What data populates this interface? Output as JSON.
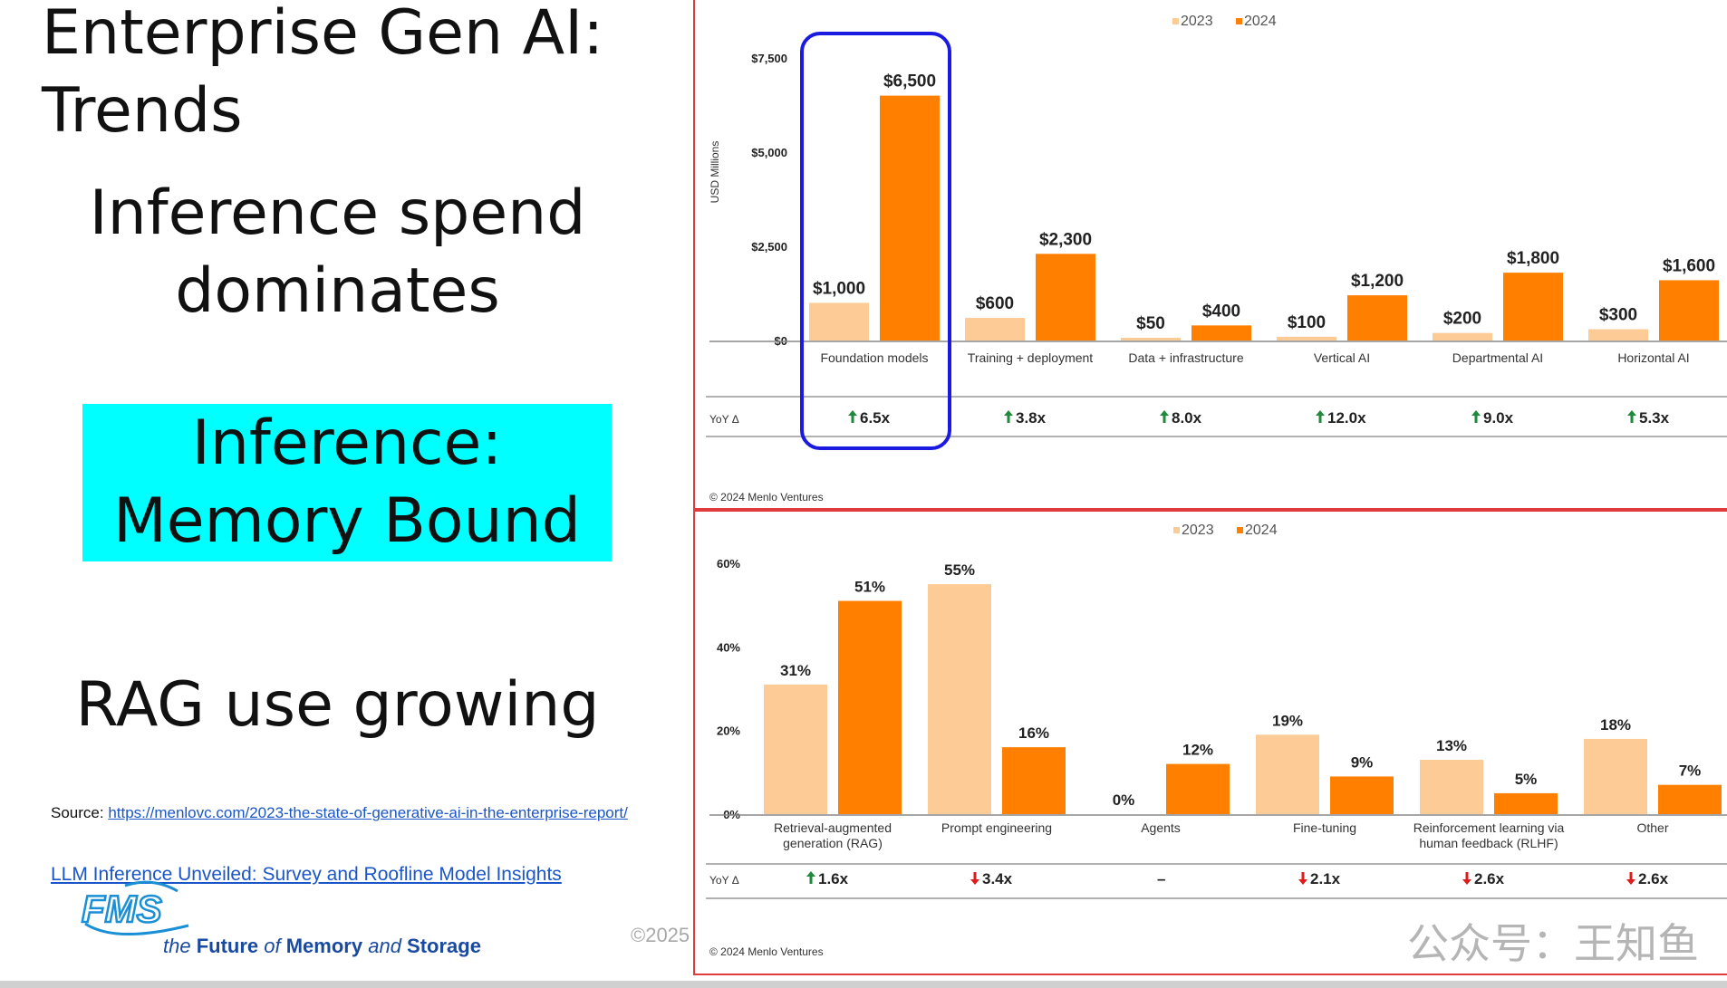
{
  "slide": {
    "title": "Enterprise Gen AI: Trends",
    "headline_1": "Inference spend dominates",
    "highlight_box": "Inference: Memory Bound",
    "headline_2": "RAG use growing",
    "source_label": "Source: ",
    "source_url": "https://menlovc.com/2023-the-state-of-generative-ai-in-the-enterprise-report/",
    "paper_link": "LLM Inference Unveiled: Survey and Roofline Model Insights",
    "logo_text": "FMS",
    "tagline": {
      "the": "the ",
      "future": "Future ",
      "of": "of ",
      "memory": "Memory ",
      "and": "and ",
      "storage": "Storage"
    },
    "copyright": "©2025",
    "watermark": "公众号：王知鱼"
  },
  "colors": {
    "series_2023": "#fccb96",
    "series_2024": "#ff7f00",
    "highlight_fill": "#00ffff",
    "panel_border": "#e03c3c",
    "callout": "#1a1ae0",
    "arrow_up": "#1e8a3a",
    "arrow_down": "#e01b1b"
  },
  "chart_data": [
    {
      "type": "bar",
      "ylabel": "USD Millions",
      "yticks": [
        "$0",
        "$2,500",
        "$5,000",
        "$7,500"
      ],
      "ylim": [
        0,
        7500
      ],
      "legend_position": "top-center",
      "categories": [
        "Foundation models",
        "Training + deployment",
        "Data + infrastructure",
        "Vertical AI",
        "Departmental AI",
        "Horizontal AI"
      ],
      "series": [
        {
          "name": "2023",
          "values": [
            1000,
            600,
            50,
            100,
            200,
            300
          ],
          "labels": [
            "$1,000",
            "$600",
            "$50",
            "$100",
            "$200",
            "$300"
          ]
        },
        {
          "name": "2024",
          "values": [
            6500,
            2300,
            400,
            1200,
            1800,
            1600
          ],
          "labels": [
            "$6,500",
            "$2,300",
            "$400",
            "$1,200",
            "$1,800",
            "$1,600"
          ]
        }
      ],
      "yoy_label": "YoY Δ",
      "yoy": [
        {
          "dir": "up",
          "text": "6.5x"
        },
        {
          "dir": "up",
          "text": "3.8x"
        },
        {
          "dir": "up",
          "text": "8.0x"
        },
        {
          "dir": "up",
          "text": "12.0x"
        },
        {
          "dir": "up",
          "text": "9.0x"
        },
        {
          "dir": "up",
          "text": "5.3x"
        }
      ],
      "credit": "© 2024 Menlo Ventures",
      "highlighted_category": "Foundation models"
    },
    {
      "type": "bar",
      "yticks": [
        "0%",
        "20%",
        "40%",
        "60%"
      ],
      "ylim": [
        0,
        60
      ],
      "legend_position": "top-center",
      "categories": [
        [
          "Retrieval-augmented",
          "generation (RAG)"
        ],
        [
          "Prompt engineering"
        ],
        [
          "Agents"
        ],
        [
          "Fine-tuning"
        ],
        [
          "Reinforcement learning via",
          "human feedback (RLHF)"
        ],
        [
          "Other"
        ]
      ],
      "series": [
        {
          "name": "2023",
          "values": [
            31,
            55,
            0,
            19,
            13,
            18
          ],
          "labels": [
            "31%",
            "55%",
            "0%",
            "19%",
            "13%",
            "18%"
          ]
        },
        {
          "name": "2024",
          "values": [
            51,
            16,
            12,
            9,
            5,
            7
          ],
          "labels": [
            "51%",
            "16%",
            "12%",
            "9%",
            "5%",
            "7%"
          ]
        }
      ],
      "yoy_label": "YoY Δ",
      "yoy": [
        {
          "dir": "up",
          "text": "1.6x"
        },
        {
          "dir": "down",
          "text": "3.4x"
        },
        {
          "dir": "none",
          "text": "–"
        },
        {
          "dir": "down",
          "text": "2.1x"
        },
        {
          "dir": "down",
          "text": "2.6x"
        },
        {
          "dir": "down",
          "text": "2.6x"
        }
      ],
      "credit": "© 2024 Menlo Ventures"
    }
  ]
}
